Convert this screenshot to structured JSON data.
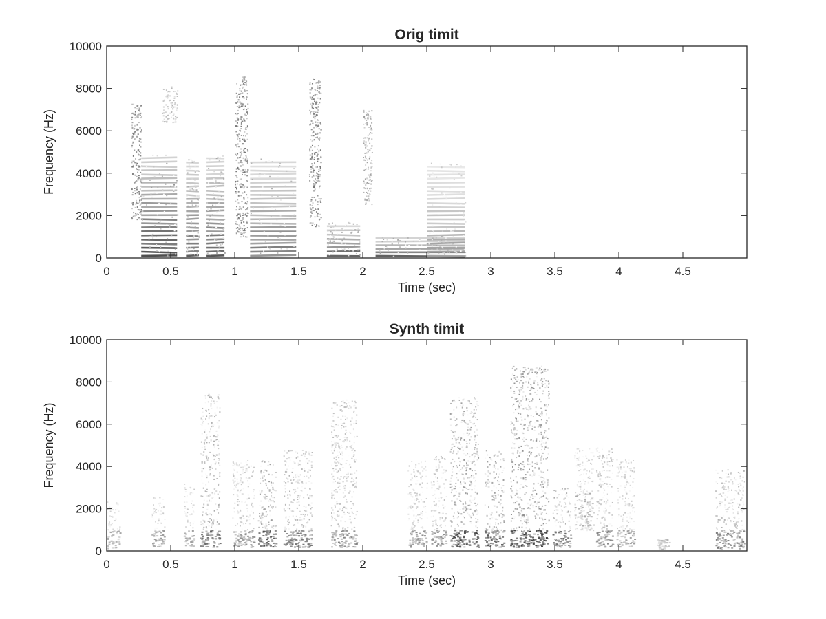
{
  "chart_data": [
    {
      "type": "heatmap",
      "subtype": "spectrogram",
      "title": "Orig timit",
      "xlabel": "Time (sec)",
      "ylabel": "Frequency (Hz)",
      "xlim": [
        0,
        5
      ],
      "ylim": [
        0,
        10000
      ],
      "x_ticks": [
        0,
        0.5,
        1,
        1.5,
        2,
        2.5,
        3,
        3.5,
        4,
        4.5
      ],
      "x_tick_labels": [
        "0",
        "0.5",
        "1",
        "1.5",
        "2",
        "2.5",
        "3",
        "3.5",
        "4",
        "4.5"
      ],
      "y_ticks": [
        0,
        2000,
        4000,
        6000,
        8000,
        10000
      ],
      "y_tick_labels": [
        "0",
        "2000",
        "4000",
        "6000",
        "8000",
        "10000"
      ],
      "colormap": "gray (white = low energy, black = high energy)",
      "grid": false,
      "harmonic_blocks": [
        {
          "t0": 0.27,
          "t1": 0.55,
          "f_top": 4900,
          "intensity": 0.85
        },
        {
          "t0": 0.62,
          "t1": 0.72,
          "f_top": 4700,
          "intensity": 0.75
        },
        {
          "t0": 0.78,
          "t1": 0.92,
          "f_top": 4900,
          "intensity": 0.75
        },
        {
          "t0": 1.12,
          "t1": 1.48,
          "f_top": 4700,
          "intensity": 0.65
        },
        {
          "t0": 1.72,
          "t1": 1.98,
          "f_top": 1700,
          "intensity": 0.8
        },
        {
          "t0": 2.1,
          "t1": 2.8,
          "f_top": 1100,
          "intensity": 0.7
        },
        {
          "t0": 2.5,
          "t1": 2.8,
          "f_top": 4500,
          "intensity": 0.45
        }
      ],
      "noise_bursts": [
        {
          "t0": 0.19,
          "t1": 0.27,
          "f_low": 1800,
          "f_high": 7300,
          "intensity": 0.55
        },
        {
          "t0": 0.43,
          "t1": 0.55,
          "f_low": 6400,
          "f_high": 8100,
          "intensity": 0.3
        },
        {
          "t0": 1.0,
          "t1": 1.1,
          "f_low": 1000,
          "f_high": 8600,
          "intensity": 0.55
        },
        {
          "t0": 1.58,
          "t1": 1.67,
          "f_low": 1500,
          "f_high": 8500,
          "intensity": 0.55
        },
        {
          "t0": 2.0,
          "t1": 2.07,
          "f_low": 2500,
          "f_high": 7000,
          "intensity": 0.4
        }
      ]
    },
    {
      "type": "heatmap",
      "subtype": "spectrogram",
      "title": "Synth timit",
      "xlabel": "Time (sec)",
      "ylabel": "Frequency (Hz)",
      "xlim": [
        0,
        5
      ],
      "ylim": [
        0,
        10000
      ],
      "x_ticks": [
        0,
        0.5,
        1,
        1.5,
        2,
        2.5,
        3,
        3.5,
        4,
        4.5
      ],
      "x_tick_labels": [
        "0",
        "0.5",
        "1",
        "1.5",
        "2",
        "2.5",
        "3",
        "3.5",
        "4",
        "4.5"
      ],
      "y_ticks": [
        0,
        2000,
        4000,
        6000,
        8000,
        10000
      ],
      "y_tick_labels": [
        "0",
        "2000",
        "4000",
        "6000",
        "8000",
        "10000"
      ],
      "colormap": "gray (white = low energy, black = high energy)",
      "grid": false,
      "energy_clusters": [
        {
          "t0": 0.0,
          "t1": 0.1,
          "f_low": 100,
          "f_high": 2400,
          "intensity": 0.35
        },
        {
          "t0": 0.35,
          "t1": 0.45,
          "f_low": 200,
          "f_high": 2600,
          "intensity": 0.4
        },
        {
          "t0": 0.6,
          "t1": 0.68,
          "f_low": 200,
          "f_high": 3200,
          "intensity": 0.4
        },
        {
          "t0": 0.73,
          "t1": 0.88,
          "f_low": 200,
          "f_high": 7500,
          "intensity": 0.6
        },
        {
          "t0": 0.98,
          "t1": 1.15,
          "f_low": 200,
          "f_high": 4300,
          "intensity": 0.45
        },
        {
          "t0": 1.18,
          "t1": 1.32,
          "f_low": 200,
          "f_high": 4300,
          "intensity": 0.7
        },
        {
          "t0": 1.38,
          "t1": 1.6,
          "f_low": 200,
          "f_high": 4800,
          "intensity": 0.55
        },
        {
          "t0": 1.75,
          "t1": 1.95,
          "f_low": 200,
          "f_high": 7200,
          "intensity": 0.5
        },
        {
          "t0": 2.35,
          "t1": 2.5,
          "f_low": 200,
          "f_high": 4300,
          "intensity": 0.45
        },
        {
          "t0": 2.53,
          "t1": 2.65,
          "f_low": 200,
          "f_high": 4500,
          "intensity": 0.45
        },
        {
          "t0": 2.68,
          "t1": 2.9,
          "f_low": 200,
          "f_high": 7300,
          "intensity": 0.75
        },
        {
          "t0": 2.95,
          "t1": 3.1,
          "f_low": 200,
          "f_high": 4800,
          "intensity": 0.7
        },
        {
          "t0": 3.15,
          "t1": 3.45,
          "f_low": 200,
          "f_high": 8800,
          "intensity": 0.8
        },
        {
          "t0": 3.48,
          "t1": 3.62,
          "f_low": 200,
          "f_high": 3000,
          "intensity": 0.6
        },
        {
          "t0": 3.65,
          "t1": 3.8,
          "f_low": 2800,
          "f_high": 4900,
          "intensity": 0.35
        },
        {
          "t0": 3.82,
          "t1": 3.95,
          "f_low": 200,
          "f_high": 4900,
          "intensity": 0.5
        },
        {
          "t0": 3.98,
          "t1": 4.12,
          "f_low": 200,
          "f_high": 4400,
          "intensity": 0.4
        },
        {
          "t0": 4.3,
          "t1": 4.4,
          "f_low": 100,
          "f_high": 600,
          "intensity": 0.3
        },
        {
          "t0": 4.75,
          "t1": 4.98,
          "f_low": 100,
          "f_high": 3900,
          "intensity": 0.55
        }
      ]
    }
  ]
}
